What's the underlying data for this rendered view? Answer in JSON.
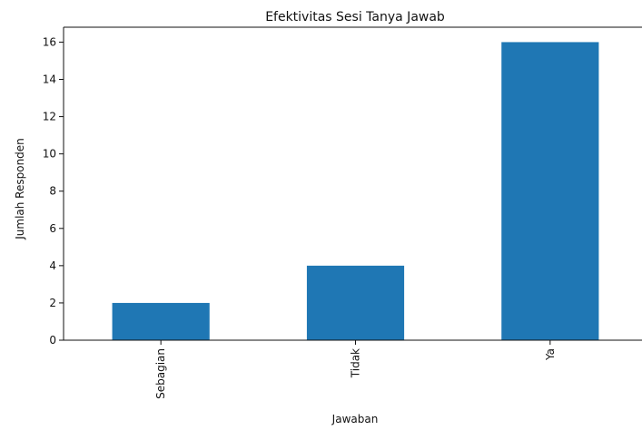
{
  "chart_data": {
    "type": "bar",
    "title": "Efektivitas Sesi Tanya Jawab",
    "xlabel": "Jawaban",
    "ylabel": "Jumlah Responden",
    "categories": [
      "Sebagian",
      "Tidak",
      "Ya"
    ],
    "values": [
      2,
      4,
      16
    ],
    "ylim": [
      0,
      16.8
    ],
    "yticks": [
      0,
      2,
      4,
      6,
      8,
      10,
      12,
      14,
      16
    ],
    "grid": false,
    "bar_color": "#1f77b4"
  }
}
